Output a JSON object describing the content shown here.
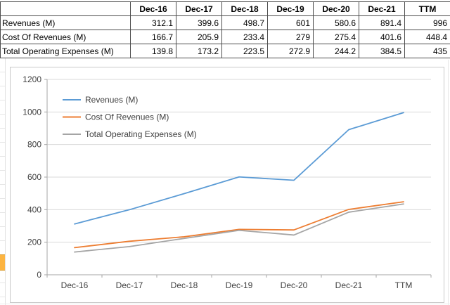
{
  "table": {
    "columns": [
      "",
      "Dec-16",
      "Dec-17",
      "Dec-18",
      "Dec-19",
      "Dec-20",
      "Dec-21",
      "TTM"
    ],
    "rows": [
      {
        "label": "Revenues (M)",
        "values": [
          "312.1",
          "399.6",
          "498.7",
          "601",
          "580.6",
          "891.4",
          "996"
        ]
      },
      {
        "label": "Cost Of Revenues (M)",
        "values": [
          "166.7",
          "205.9",
          "233.4",
          "279",
          "275.4",
          "401.6",
          "448.4"
        ]
      },
      {
        "label": "Total Operating Expenses (M)",
        "values": [
          "139.8",
          "173.2",
          "223.5",
          "272.9",
          "244.2",
          "384.5",
          "435"
        ]
      }
    ]
  },
  "chart_data": {
    "type": "line",
    "title": "",
    "categories": [
      "Dec-16",
      "Dec-17",
      "Dec-18",
      "Dec-19",
      "Dec-20",
      "Dec-21",
      "TTM"
    ],
    "series": [
      {
        "name": "Revenues (M)",
        "color": "#5B9BD5",
        "values": [
          312.1,
          399.6,
          498.7,
          601,
          580.6,
          891.4,
          996
        ]
      },
      {
        "name": "Cost Of Revenues (M)",
        "color": "#ED7D31",
        "values": [
          166.7,
          205.9,
          233.4,
          279,
          275.4,
          401.6,
          448.4
        ]
      },
      {
        "name": "Total Operating Expenses (M)",
        "color": "#A5A5A5",
        "values": [
          139.8,
          173.2,
          223.5,
          272.9,
          244.2,
          384.5,
          435
        ]
      }
    ],
    "xlabel": "",
    "ylabel": "",
    "ylim": [
      0,
      1200
    ],
    "yticks": [
      0,
      200,
      400,
      600,
      800,
      1000,
      1200
    ],
    "grid": true,
    "legend_position": "top-left-inside"
  },
  "colors": {
    "gridline": "#d9d9d9",
    "axis": "#a6a6a6",
    "axis_text": "#404040",
    "table_border": "#4d4d4d",
    "highlight_cell": "#fcb441"
  }
}
